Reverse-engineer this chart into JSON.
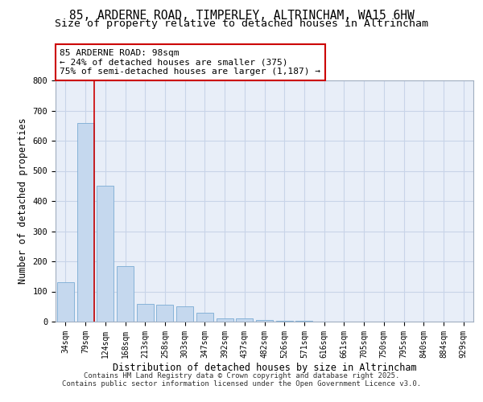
{
  "title_line1": "85, ARDERNE ROAD, TIMPERLEY, ALTRINCHAM, WA15 6HW",
  "title_line2": "Size of property relative to detached houses in Altrincham",
  "xlabel": "Distribution of detached houses by size in Altrincham",
  "ylabel": "Number of detached properties",
  "categories": [
    "34sqm",
    "79sqm",
    "124sqm",
    "168sqm",
    "213sqm",
    "258sqm",
    "303sqm",
    "347sqm",
    "392sqm",
    "437sqm",
    "482sqm",
    "526sqm",
    "571sqm",
    "616sqm",
    "661sqm",
    "705sqm",
    "750sqm",
    "795sqm",
    "840sqm",
    "884sqm",
    "929sqm"
  ],
  "values": [
    130,
    660,
    450,
    185,
    60,
    55,
    50,
    30,
    10,
    10,
    5,
    3,
    2,
    1,
    0,
    0,
    0,
    0,
    0,
    0,
    0
  ],
  "bar_color": "#c5d8ee",
  "bar_edge_color": "#7bacd4",
  "annotation_text": "85 ARDERNE ROAD: 98sqm\n← 24% of detached houses are smaller (375)\n75% of semi-detached houses are larger (1,187) →",
  "annotation_box_color": "#ffffff",
  "annotation_edge_color": "#cc0000",
  "ylim": [
    0,
    800
  ],
  "yticks": [
    0,
    100,
    200,
    300,
    400,
    500,
    600,
    700,
    800
  ],
  "grid_color": "#c8d4e8",
  "background_color": "#e8eef8",
  "footer_line1": "Contains HM Land Registry data © Crown copyright and database right 2025.",
  "footer_line2": "Contains public sector information licensed under the Open Government Licence v3.0.",
  "title_fontsize": 10.5,
  "subtitle_fontsize": 9.5,
  "axis_label_fontsize": 8.5,
  "tick_fontsize": 7,
  "annotation_fontsize": 8,
  "footer_fontsize": 6.5
}
